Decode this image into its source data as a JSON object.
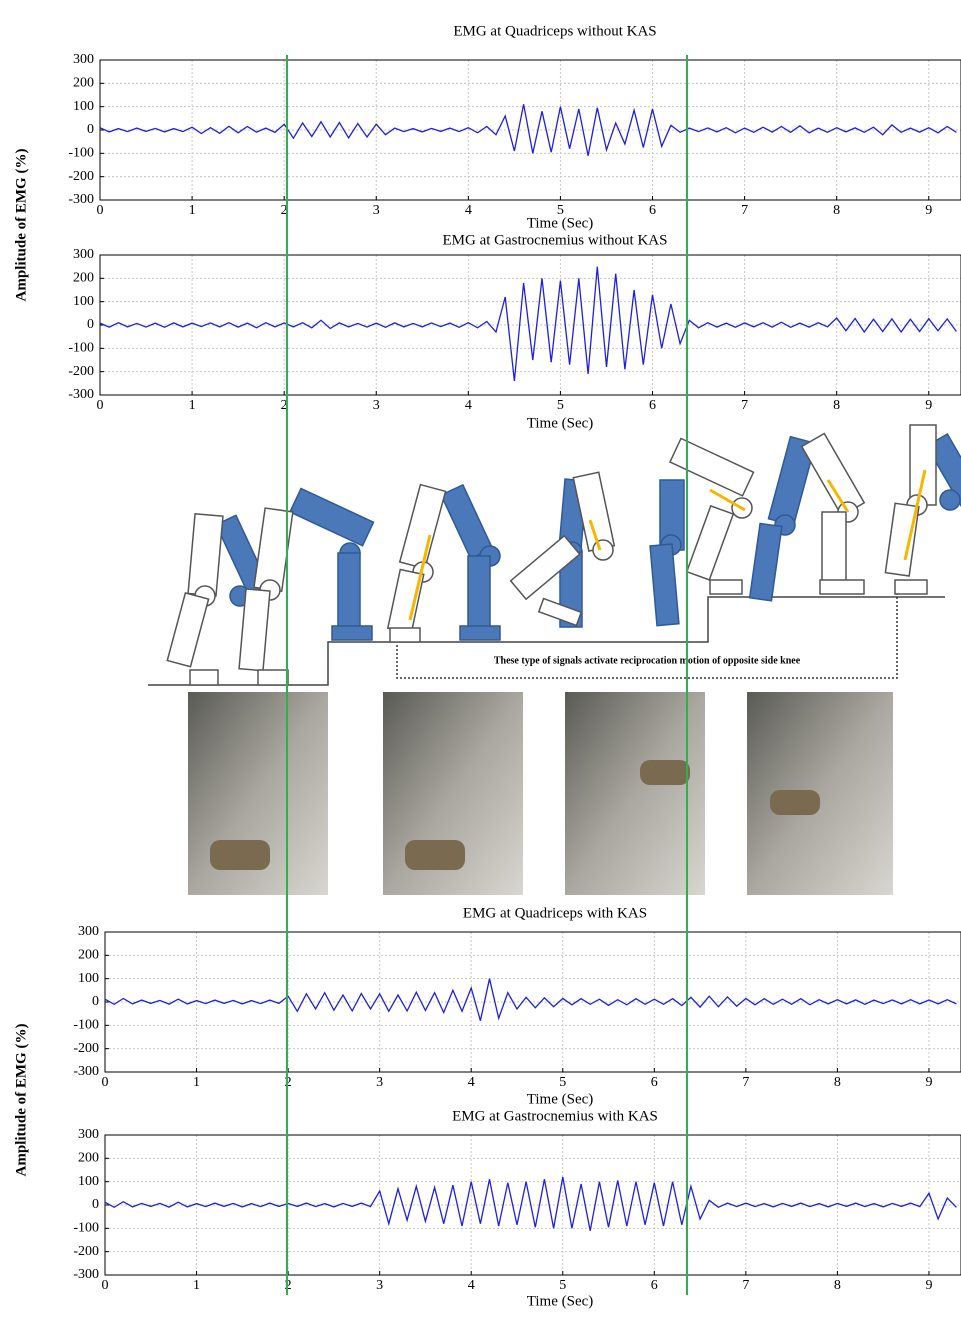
{
  "chart_data": [
    {
      "type": "line",
      "title": "EMG at Quadriceps without KAS",
      "xlabel": "Time (Sec)",
      "ylabel": "Amplitude of EMG (%)",
      "xlim": [
        0,
        9.35
      ],
      "ylim": [
        -300,
        300
      ],
      "xticks": [
        0,
        1,
        2,
        3,
        4,
        5,
        6,
        7,
        8,
        9
      ],
      "yticks": [
        300,
        200,
        100,
        0,
        -100,
        -200,
        -300
      ],
      "grid": true,
      "series": [
        {
          "color": "#1f1fe0",
          "x": [
            0,
            0.1,
            0.2,
            0.3,
            0.4,
            0.5,
            0.6,
            0.7,
            0.8,
            0.9,
            1,
            1.1,
            1.2,
            1.3,
            1.4,
            1.5,
            1.6,
            1.7,
            1.8,
            1.9,
            2,
            2.1,
            2.2,
            2.3,
            2.4,
            2.5,
            2.6,
            2.7,
            2.8,
            2.9,
            3,
            3.1,
            3.2,
            3.3,
            3.4,
            3.5,
            3.6,
            3.7,
            3.8,
            3.9,
            4,
            4.1,
            4.2,
            4.3,
            4.4,
            4.5,
            4.6,
            4.7,
            4.8,
            4.9,
            5,
            5.1,
            5.2,
            5.3,
            5.4,
            5.5,
            5.6,
            5.7,
            5.8,
            5.9,
            6,
            6.1,
            6.2,
            6.3,
            6.4,
            6.5,
            6.6,
            6.7,
            6.8,
            6.9,
            7,
            7.1,
            7.2,
            7.3,
            7.4,
            7.5,
            7.6,
            7.7,
            7.8,
            7.9,
            8,
            8.1,
            8.2,
            8.3,
            8.4,
            8.5,
            8.6,
            8.7,
            8.8,
            8.9,
            9,
            9.1,
            9.2,
            9.3
          ],
          "values": [
            10,
            -8,
            6,
            -7,
            8,
            -6,
            7,
            -8,
            6,
            -7,
            12,
            -15,
            10,
            -14,
            16,
            -12,
            15,
            -9,
            8,
            -10,
            25,
            -35,
            30,
            -28,
            35,
            -30,
            32,
            -34,
            28,
            -30,
            25,
            -20,
            8,
            -7,
            6,
            -8,
            7,
            -6,
            8,
            -7,
            10,
            -12,
            15,
            -20,
            60,
            -90,
            110,
            -100,
            80,
            -95,
            100,
            -80,
            90,
            -110,
            95,
            -85,
            30,
            -60,
            85,
            -75,
            90,
            -70,
            20,
            -10,
            8,
            -7,
            9,
            -8,
            10,
            -12,
            8,
            -10,
            12,
            -9,
            15,
            -10,
            18,
            -12,
            8,
            -10,
            10,
            -8,
            9,
            -10,
            12,
            -20,
            22,
            -10,
            8,
            -9,
            10,
            -12,
            15,
            -10
          ]
        }
      ]
    },
    {
      "type": "line",
      "title": "EMG at Gastrocnemius without KAS",
      "xlabel": "Time (Sec)",
      "xlim": [
        0,
        9.35
      ],
      "ylim": [
        -300,
        300
      ],
      "xticks": [
        0,
        1,
        2,
        3,
        4,
        5,
        6,
        7,
        8,
        9
      ],
      "yticks": [
        300,
        200,
        100,
        0,
        -100,
        -200,
        -300
      ],
      "grid": true,
      "series": [
        {
          "color": "#1f1fe0",
          "x": [
            0,
            0.1,
            0.2,
            0.3,
            0.4,
            0.5,
            0.6,
            0.7,
            0.8,
            0.9,
            1,
            1.1,
            1.2,
            1.3,
            1.4,
            1.5,
            1.6,
            1.7,
            1.8,
            1.9,
            2,
            2.1,
            2.2,
            2.3,
            2.4,
            2.5,
            2.6,
            2.7,
            2.8,
            2.9,
            3,
            3.1,
            3.2,
            3.3,
            3.4,
            3.5,
            3.6,
            3.7,
            3.8,
            3.9,
            4,
            4.1,
            4.2,
            4.3,
            4.4,
            4.5,
            4.6,
            4.7,
            4.8,
            4.9,
            5,
            5.1,
            5.2,
            5.3,
            5.4,
            5.5,
            5.6,
            5.7,
            5.8,
            5.9,
            6,
            6.1,
            6.2,
            6.3,
            6.4,
            6.5,
            6.6,
            6.7,
            6.8,
            6.9,
            7,
            7.1,
            7.2,
            7.3,
            7.4,
            7.5,
            7.6,
            7.7,
            7.8,
            7.9,
            8,
            8.1,
            8.2,
            8.3,
            8.4,
            8.5,
            8.6,
            8.7,
            8.8,
            8.9,
            9,
            9.1,
            9.2,
            9.3
          ],
          "values": [
            8,
            -9,
            10,
            -8,
            7,
            -9,
            8,
            -10,
            9,
            -8,
            8,
            -7,
            9,
            -8,
            10,
            -9,
            8,
            -12,
            10,
            -8,
            9,
            -8,
            10,
            -12,
            20,
            -15,
            9,
            -8,
            7,
            -9,
            8,
            -10,
            9,
            -8,
            7,
            -8,
            9,
            -7,
            8,
            -10,
            10,
            -12,
            15,
            -30,
            120,
            -240,
            180,
            -150,
            200,
            -160,
            190,
            -170,
            200,
            -210,
            250,
            -180,
            220,
            -190,
            150,
            -170,
            130,
            -100,
            90,
            -80,
            20,
            -12,
            10,
            -9,
            8,
            -10,
            9,
            -8,
            10,
            -9,
            12,
            -10,
            8,
            -9,
            10,
            -8,
            30,
            -25,
            28,
            -30,
            25,
            -28,
            26,
            -30,
            25,
            -28,
            27,
            -25,
            26,
            -28
          ]
        }
      ]
    },
    {
      "type": "line",
      "title": "EMG at Quadriceps with KAS",
      "xlabel": "Time (Sec)",
      "ylabel": "Amplitude of EMG (%)",
      "xlim": [
        0,
        9.35
      ],
      "ylim": [
        -300,
        300
      ],
      "xticks": [
        0,
        1,
        2,
        3,
        4,
        5,
        6,
        7,
        8,
        9
      ],
      "yticks": [
        300,
        200,
        100,
        0,
        -100,
        -200,
        -300
      ],
      "grid": true,
      "series": [
        {
          "color": "#1f1fe0",
          "x": [
            0,
            0.1,
            0.2,
            0.3,
            0.4,
            0.5,
            0.6,
            0.7,
            0.8,
            0.9,
            1,
            1.1,
            1.2,
            1.3,
            1.4,
            1.5,
            1.6,
            1.7,
            1.8,
            1.9,
            2,
            2.1,
            2.2,
            2.3,
            2.4,
            2.5,
            2.6,
            2.7,
            2.8,
            2.9,
            3,
            3.1,
            3.2,
            3.3,
            3.4,
            3.5,
            3.6,
            3.7,
            3.8,
            3.9,
            4,
            4.1,
            4.2,
            4.3,
            4.4,
            4.5,
            4.6,
            4.7,
            4.8,
            4.9,
            5,
            5.1,
            5.2,
            5.3,
            5.4,
            5.5,
            5.6,
            5.7,
            5.8,
            5.9,
            6,
            6.1,
            6.2,
            6.3,
            6.4,
            6.5,
            6.6,
            6.7,
            6.8,
            6.9,
            7,
            7.1,
            7.2,
            7.3,
            7.4,
            7.5,
            7.6,
            7.7,
            7.8,
            7.9,
            8,
            8.1,
            8.2,
            8.3,
            8.4,
            8.5,
            8.6,
            8.7,
            8.8,
            8.9,
            9,
            9.1,
            9.2,
            9.3
          ],
          "values": [
            12,
            -10,
            15,
            -8,
            8,
            -6,
            7,
            -9,
            12,
            -8,
            6,
            -7,
            8,
            -6,
            7,
            -8,
            6,
            -7,
            8,
            -6,
            25,
            -40,
            35,
            -30,
            40,
            -35,
            30,
            -38,
            36,
            -30,
            35,
            -40,
            30,
            -38,
            42,
            -36,
            40,
            -45,
            50,
            -40,
            60,
            -80,
            100,
            -70,
            40,
            -30,
            20,
            -25,
            18,
            -20,
            15,
            -12,
            14,
            -10,
            12,
            -14,
            10,
            -12,
            14,
            -10,
            12,
            -10,
            14,
            -15,
            20,
            -22,
            25,
            -20,
            22,
            -18,
            15,
            -12,
            14,
            -10,
            12,
            -10,
            14,
            -12,
            10,
            -8,
            10,
            -8,
            9,
            -10,
            8,
            -7,
            9,
            -8,
            10,
            -8,
            9,
            -8,
            10,
            -8
          ]
        }
      ]
    },
    {
      "type": "line",
      "title": "EMG at Gastrocnemius with KAS",
      "xlabel": "Time (Sec)",
      "xlim": [
        0,
        9.35
      ],
      "ylim": [
        -300,
        300
      ],
      "xticks": [
        0,
        1,
        2,
        3,
        4,
        5,
        6,
        7,
        8,
        9
      ],
      "yticks": [
        300,
        200,
        100,
        0,
        -100,
        -200,
        -300
      ],
      "grid": true,
      "series": [
        {
          "color": "#1f1fe0",
          "x": [
            0,
            0.1,
            0.2,
            0.3,
            0.4,
            0.5,
            0.6,
            0.7,
            0.8,
            0.9,
            1,
            1.1,
            1.2,
            1.3,
            1.4,
            1.5,
            1.6,
            1.7,
            1.8,
            1.9,
            2,
            2.1,
            2.2,
            2.3,
            2.4,
            2.5,
            2.6,
            2.7,
            2.8,
            2.9,
            3,
            3.1,
            3.2,
            3.3,
            3.4,
            3.5,
            3.6,
            3.7,
            3.8,
            3.9,
            4,
            4.1,
            4.2,
            4.3,
            4.4,
            4.5,
            4.6,
            4.7,
            4.8,
            4.9,
            5,
            5.1,
            5.2,
            5.3,
            5.4,
            5.5,
            5.6,
            5.7,
            5.8,
            5.9,
            6,
            6.1,
            6.2,
            6.3,
            6.4,
            6.5,
            6.6,
            6.7,
            6.8,
            6.9,
            7,
            7.1,
            7.2,
            7.3,
            7.4,
            7.5,
            7.6,
            7.7,
            7.8,
            7.9,
            8,
            8.1,
            8.2,
            8.3,
            8.4,
            8.5,
            8.6,
            8.7,
            8.8,
            8.9,
            9,
            9.1,
            9.2,
            9.3
          ],
          "values": [
            12,
            -10,
            14,
            -8,
            7,
            -6,
            7,
            -9,
            12,
            -8,
            6,
            -7,
            8,
            -6,
            7,
            -8,
            6,
            -7,
            8,
            -6,
            7,
            -6,
            8,
            -7,
            6,
            -8,
            7,
            -6,
            8,
            -7,
            60,
            -80,
            70,
            -65,
            80,
            -70,
            75,
            -80,
            85,
            -90,
            100,
            -80,
            110,
            -90,
            95,
            -85,
            100,
            -95,
            110,
            -100,
            120,
            -100,
            90,
            -110,
            100,
            -95,
            105,
            -90,
            100,
            -85,
            95,
            -90,
            100,
            -85,
            80,
            -60,
            20,
            -10,
            8,
            -7,
            8,
            -7,
            6,
            -8,
            7,
            -6,
            8,
            -7,
            6,
            -8,
            7,
            -6,
            8,
            -7,
            6,
            -8,
            7,
            -6,
            8,
            -7,
            50,
            -60,
            30,
            -10
          ]
        }
      ]
    }
  ],
  "diagram": {
    "note": "These type of signals activate reciprocation motion of opposite side knee"
  }
}
